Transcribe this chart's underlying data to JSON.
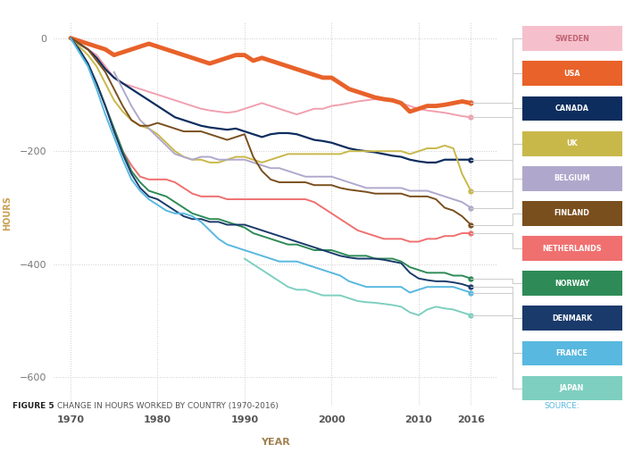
{
  "title": "FIGURE 5   CHANGE IN HOURS WORKED BY COUNTRY (1970-2016)",
  "source_text": "SOURCE:",
  "xlabel": "YEAR",
  "ylabel": "HOURS",
  "ylim": [
    -650,
    30
  ],
  "xlim": [
    1968,
    2019
  ],
  "yticks": [
    0,
    -200,
    -400,
    -600
  ],
  "xticks": [
    1970,
    1980,
    1990,
    2000,
    2010,
    2016
  ],
  "background_color": "#ffffff",
  "plot_bg": "#ffffff",
  "footer_color": "#d4b483",
  "grid_color": "#cccccc",
  "countries": [
    {
      "name": "SWEDEN",
      "color": "#f0a0b0",
      "lw": 1.4,
      "years": [
        1970,
        1971,
        1972,
        1973,
        1974,
        1975,
        1976,
        1977,
        1978,
        1979,
        1980,
        1981,
        1982,
        1983,
        1984,
        1985,
        1986,
        1987,
        1988,
        1989,
        1990,
        1991,
        1992,
        1993,
        1994,
        1995,
        1996,
        1997,
        1998,
        1999,
        2000,
        2001,
        2002,
        2003,
        2004,
        2005,
        2006,
        2007,
        2008,
        2009,
        2010,
        2011,
        2012,
        2013,
        2014,
        2015,
        2016
      ],
      "values": [
        0,
        -10,
        -20,
        -30,
        -50,
        -70,
        -80,
        -85,
        -90,
        -95,
        -100,
        -105,
        -110,
        -115,
        -120,
        -125,
        -128,
        -130,
        -132,
        -130,
        -125,
        -120,
        -115,
        -120,
        -125,
        -130,
        -135,
        -130,
        -125,
        -125,
        -120,
        -118,
        -115,
        -112,
        -110,
        -108,
        -110,
        -112,
        -115,
        -120,
        -125,
        -128,
        -130,
        -132,
        -135,
        -138,
        -140
      ]
    },
    {
      "name": "USA",
      "color": "#e8622a",
      "lw": 3.5,
      "years": [
        1970,
        1971,
        1972,
        1973,
        1974,
        1975,
        1976,
        1977,
        1978,
        1979,
        1980,
        1981,
        1982,
        1983,
        1984,
        1985,
        1986,
        1987,
        1988,
        1989,
        1990,
        1991,
        1992,
        1993,
        1994,
        1995,
        1996,
        1997,
        1998,
        1999,
        2000,
        2001,
        2002,
        2003,
        2004,
        2005,
        2006,
        2007,
        2008,
        2009,
        2010,
        2011,
        2012,
        2013,
        2014,
        2015,
        2016
      ],
      "values": [
        0,
        -5,
        -10,
        -15,
        -20,
        -30,
        -25,
        -20,
        -15,
        -10,
        -15,
        -20,
        -25,
        -30,
        -35,
        -40,
        -45,
        -40,
        -35,
        -30,
        -30,
        -40,
        -35,
        -40,
        -45,
        -50,
        -55,
        -60,
        -65,
        -70,
        -70,
        -80,
        -90,
        -95,
        -100,
        -105,
        -108,
        -110,
        -115,
        -130,
        -125,
        -120,
        -120,
        -118,
        -115,
        -112,
        -115
      ]
    },
    {
      "name": "CANADA",
      "color": "#0d2d5e",
      "lw": 1.6,
      "years": [
        1970,
        1971,
        1972,
        1973,
        1974,
        1975,
        1976,
        1977,
        1978,
        1979,
        1980,
        1981,
        1982,
        1983,
        1984,
        1985,
        1986,
        1987,
        1988,
        1989,
        1990,
        1991,
        1992,
        1993,
        1994,
        1995,
        1996,
        1997,
        1998,
        1999,
        2000,
        2001,
        2002,
        2003,
        2004,
        2005,
        2006,
        2007,
        2008,
        2009,
        2010,
        2011,
        2012,
        2013,
        2014,
        2015,
        2016
      ],
      "values": [
        0,
        -10,
        -20,
        -35,
        -55,
        -70,
        -80,
        -90,
        -100,
        -110,
        -120,
        -130,
        -140,
        -145,
        -150,
        -155,
        -158,
        -160,
        -162,
        -160,
        -165,
        -170,
        -175,
        -170,
        -168,
        -168,
        -170,
        -175,
        -180,
        -182,
        -185,
        -190,
        -195,
        -198,
        -200,
        -202,
        -205,
        -208,
        -210,
        -215,
        -218,
        -220,
        -220,
        -215,
        -215,
        -215,
        -215
      ]
    },
    {
      "name": "UK",
      "color": "#c8b84a",
      "lw": 1.4,
      "years": [
        1970,
        1971,
        1972,
        1973,
        1974,
        1975,
        1976,
        1977,
        1978,
        1979,
        1980,
        1981,
        1982,
        1983,
        1984,
        1985,
        1986,
        1987,
        1988,
        1989,
        1990,
        1991,
        1992,
        1993,
        1994,
        1995,
        1996,
        1997,
        1998,
        1999,
        2000,
        2001,
        2002,
        2003,
        2004,
        2005,
        2006,
        2007,
        2008,
        2009,
        2010,
        2011,
        2012,
        2013,
        2014,
        2015,
        2016
      ],
      "values": [
        0,
        -15,
        -30,
        -50,
        -80,
        -110,
        -130,
        -145,
        -155,
        -160,
        -170,
        -185,
        -200,
        -210,
        -215,
        -215,
        -220,
        -220,
        -215,
        -210,
        -210,
        -215,
        -220,
        -215,
        -210,
        -205,
        -205,
        -205,
        -205,
        -205,
        -205,
        -205,
        -200,
        -200,
        -200,
        -200,
        -200,
        -200,
        -200,
        -205,
        -200,
        -195,
        -195,
        -190,
        -195,
        -240,
        -270
      ]
    },
    {
      "name": "BELGIUM",
      "color": "#b0a8cc",
      "lw": 1.4,
      "years": [
        1975,
        1976,
        1977,
        1978,
        1979,
        1980,
        1981,
        1982,
        1983,
        1984,
        1985,
        1986,
        1987,
        1988,
        1989,
        1990,
        1991,
        1992,
        1993,
        1994,
        1995,
        1996,
        1997,
        1998,
        1999,
        2000,
        2001,
        2002,
        2003,
        2004,
        2005,
        2006,
        2007,
        2008,
        2009,
        2010,
        2011,
        2012,
        2013,
        2014,
        2015,
        2016
      ],
      "values": [
        -60,
        -90,
        -120,
        -145,
        -160,
        -175,
        -190,
        -205,
        -210,
        -215,
        -210,
        -210,
        -215,
        -215,
        -215,
        -215,
        -220,
        -225,
        -230,
        -230,
        -235,
        -240,
        -245,
        -245,
        -245,
        -245,
        -250,
        -255,
        -260,
        -265,
        -265,
        -265,
        -265,
        -265,
        -270,
        -270,
        -270,
        -275,
        -280,
        -285,
        -290,
        -300
      ]
    },
    {
      "name": "FINLAND",
      "color": "#7a4f1e",
      "lw": 1.4,
      "years": [
        1970,
        1971,
        1972,
        1973,
        1974,
        1975,
        1976,
        1977,
        1978,
        1979,
        1980,
        1981,
        1982,
        1983,
        1984,
        1985,
        1986,
        1987,
        1988,
        1989,
        1990,
        1991,
        1992,
        1993,
        1994,
        1995,
        1996,
        1997,
        1998,
        1999,
        2000,
        2001,
        2002,
        2003,
        2004,
        2005,
        2006,
        2007,
        2008,
        2009,
        2010,
        2011,
        2012,
        2013,
        2014,
        2015,
        2016
      ],
      "values": [
        0,
        -10,
        -20,
        -40,
        -60,
        -90,
        -120,
        -145,
        -155,
        -155,
        -150,
        -155,
        -160,
        -165,
        -165,
        -165,
        -170,
        -175,
        -180,
        -175,
        -170,
        -210,
        -235,
        -250,
        -255,
        -255,
        -255,
        -255,
        -260,
        -260,
        -260,
        -265,
        -268,
        -270,
        -272,
        -275,
        -275,
        -275,
        -275,
        -280,
        -280,
        -280,
        -285,
        -300,
        -305,
        -315,
        -330
      ]
    },
    {
      "name": "NETHERLANDS",
      "color": "#f07070",
      "lw": 1.4,
      "years": [
        1970,
        1971,
        1972,
        1973,
        1974,
        1975,
        1976,
        1977,
        1978,
        1979,
        1980,
        1981,
        1982,
        1983,
        1984,
        1985,
        1986,
        1987,
        1988,
        1989,
        1990,
        1991,
        1992,
        1993,
        1994,
        1995,
        1996,
        1997,
        1998,
        1999,
        2000,
        2001,
        2002,
        2003,
        2004,
        2005,
        2006,
        2007,
        2008,
        2009,
        2010,
        2011,
        2012,
        2013,
        2014,
        2015,
        2016
      ],
      "values": [
        0,
        -20,
        -45,
        -80,
        -120,
        -160,
        -200,
        -225,
        -245,
        -250,
        -250,
        -250,
        -255,
        -265,
        -275,
        -280,
        -280,
        -280,
        -285,
        -285,
        -285,
        -285,
        -285,
        -285,
        -285,
        -285,
        -285,
        -285,
        -290,
        -300,
        -310,
        -320,
        -330,
        -340,
        -345,
        -350,
        -355,
        -355,
        -355,
        -360,
        -360,
        -355,
        -355,
        -350,
        -350,
        -345,
        -345
      ]
    },
    {
      "name": "NORWAY",
      "color": "#2e8b57",
      "lw": 1.4,
      "years": [
        1970,
        1971,
        1972,
        1973,
        1974,
        1975,
        1976,
        1977,
        1978,
        1979,
        1980,
        1981,
        1982,
        1983,
        1984,
        1985,
        1986,
        1987,
        1988,
        1989,
        1990,
        1991,
        1992,
        1993,
        1994,
        1995,
        1996,
        1997,
        1998,
        1999,
        2000,
        2001,
        2002,
        2003,
        2004,
        2005,
        2006,
        2007,
        2008,
        2009,
        2010,
        2011,
        2012,
        2013,
        2014,
        2015,
        2016
      ],
      "values": [
        0,
        -20,
        -45,
        -80,
        -120,
        -160,
        -200,
        -235,
        -255,
        -270,
        -275,
        -280,
        -290,
        -300,
        -310,
        -315,
        -320,
        -320,
        -325,
        -330,
        -335,
        -345,
        -350,
        -355,
        -360,
        -365,
        -365,
        -370,
        -375,
        -375,
        -375,
        -380,
        -385,
        -385,
        -385,
        -390,
        -390,
        -390,
        -395,
        -405,
        -410,
        -415,
        -415,
        -415,
        -420,
        -420,
        -425
      ]
    },
    {
      "name": "DENMARK",
      "color": "#1a3a6b",
      "lw": 1.4,
      "years": [
        1970,
        1971,
        1972,
        1973,
        1974,
        1975,
        1976,
        1977,
        1978,
        1979,
        1980,
        1981,
        1982,
        1983,
        1984,
        1985,
        1986,
        1987,
        1988,
        1989,
        1990,
        1991,
        1992,
        1993,
        1994,
        1995,
        1996,
        1997,
        1998,
        1999,
        2000,
        2001,
        2002,
        2003,
        2004,
        2005,
        2006,
        2007,
        2008,
        2009,
        2010,
        2011,
        2012,
        2013,
        2014,
        2015,
        2016
      ],
      "values": [
        0,
        -20,
        -45,
        -80,
        -120,
        -165,
        -205,
        -240,
        -265,
        -280,
        -285,
        -295,
        -305,
        -315,
        -320,
        -320,
        -325,
        -325,
        -330,
        -330,
        -330,
        -335,
        -340,
        -345,
        -350,
        -355,
        -360,
        -365,
        -370,
        -375,
        -380,
        -385,
        -388,
        -390,
        -390,
        -390,
        -392,
        -395,
        -398,
        -415,
        -425,
        -428,
        -430,
        -430,
        -432,
        -435,
        -440
      ]
    },
    {
      "name": "FRANCE",
      "color": "#58b8e0",
      "lw": 1.4,
      "years": [
        1970,
        1971,
        1972,
        1973,
        1974,
        1975,
        1976,
        1977,
        1978,
        1979,
        1980,
        1981,
        1982,
        1983,
        1984,
        1985,
        1986,
        1987,
        1988,
        1989,
        1990,
        1991,
        1992,
        1993,
        1994,
        1995,
        1996,
        1997,
        1998,
        1999,
        2000,
        2001,
        2002,
        2003,
        2004,
        2005,
        2006,
        2007,
        2008,
        2009,
        2010,
        2011,
        2012,
        2013,
        2014,
        2015,
        2016
      ],
      "values": [
        0,
        -25,
        -50,
        -90,
        -135,
        -175,
        -215,
        -250,
        -270,
        -285,
        -295,
        -305,
        -310,
        -310,
        -315,
        -325,
        -340,
        -355,
        -365,
        -370,
        -375,
        -380,
        -385,
        -390,
        -395,
        -395,
        -395,
        -400,
        -405,
        -410,
        -415,
        -420,
        -430,
        -435,
        -440,
        -440,
        -440,
        -440,
        -440,
        -450,
        -445,
        -440,
        -440,
        -440,
        -440,
        -445,
        -450
      ]
    },
    {
      "name": "JAPAN",
      "color": "#7ecfc0",
      "lw": 1.4,
      "years": [
        1990,
        1991,
        1992,
        1993,
        1994,
        1995,
        1996,
        1997,
        1998,
        1999,
        2000,
        2001,
        2002,
        2003,
        2004,
        2005,
        2006,
        2007,
        2008,
        2009,
        2010,
        2011,
        2012,
        2013,
        2014,
        2015,
        2016
      ],
      "values": [
        -390,
        -400,
        -410,
        -420,
        -430,
        -440,
        -445,
        -445,
        -450,
        -455,
        -455,
        -455,
        -460,
        -465,
        -467,
        -468,
        -470,
        -472,
        -475,
        -485,
        -490,
        -480,
        -475,
        -478,
        -480,
        -485,
        -490
      ]
    }
  ],
  "legend_order": [
    "SWEDEN",
    "USA",
    "CANADA",
    "UK",
    "BELGIUM",
    "FINLAND",
    "NETHERLANDS",
    "NORWAY",
    "DENMARK",
    "FRANCE",
    "JAPAN"
  ],
  "label_bg_colors": {
    "SWEDEN": "#f5c0cc",
    "USA": "#e8622a",
    "CANADA": "#0d2d5e",
    "UK": "#c8b84a",
    "BELGIUM": "#b0a8cc",
    "FINLAND": "#7a4f1e",
    "NETHERLANDS": "#f07070",
    "NORWAY": "#2e8b57",
    "DENMARK": "#1a3a6b",
    "FRANCE": "#58b8e0",
    "JAPAN": "#7ecfc0"
  },
  "label_text_colors": {
    "SWEDEN": "#c06070",
    "USA": "#ffffff",
    "CANADA": "#ffffff",
    "UK": "#ffffff",
    "BELGIUM": "#ffffff",
    "FINLAND": "#ffffff",
    "NETHERLANDS": "#ffffff",
    "NORWAY": "#ffffff",
    "DENMARK": "#ffffff",
    "FRANCE": "#ffffff",
    "JAPAN": "#ffffff"
  },
  "dot_colors": {
    "SWEDEN": "#f0a0b0",
    "USA": "#e8622a",
    "CANADA": "#0d2d5e",
    "UK": "#c8b84a",
    "BELGIUM": "#b0a8cc",
    "FINLAND": "#7a4f1e",
    "NETHERLANDS": "#f07070",
    "NORWAY": "#2e8b57",
    "DENMARK": "#1a3a6b",
    "FRANCE": "#58b8e0",
    "JAPAN": "#7ecfc0"
  }
}
